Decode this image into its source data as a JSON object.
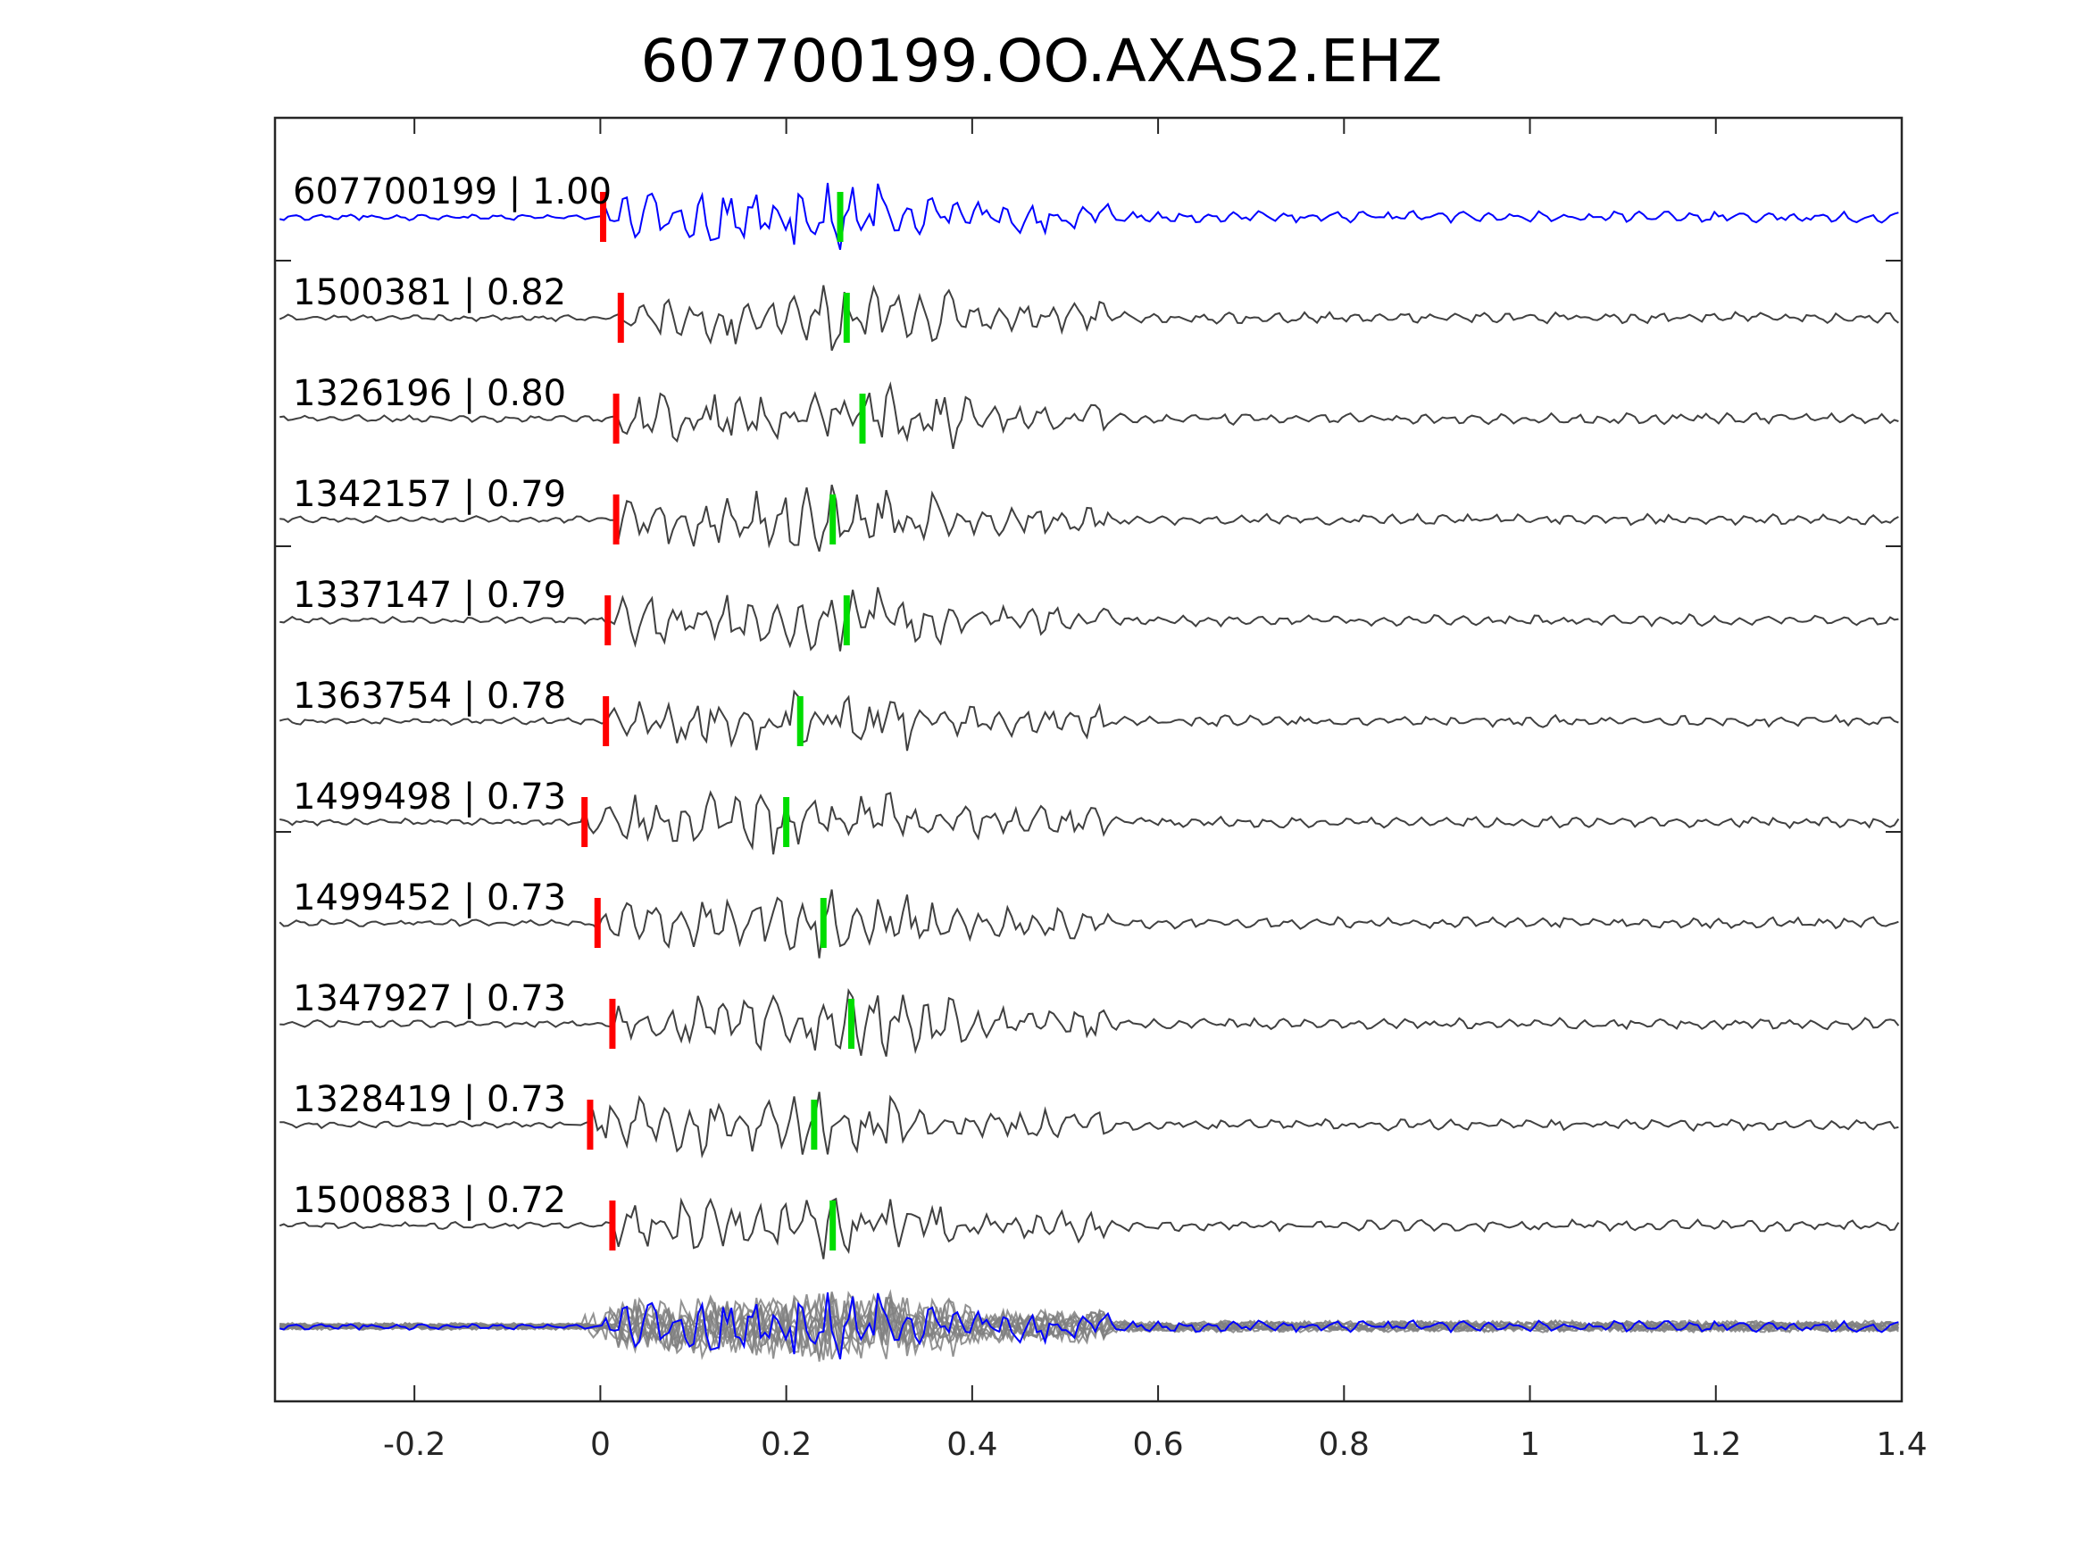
{
  "chart_data": {
    "type": "line",
    "title": "607700199.OO.AXAS2.EHZ",
    "xlabel": "",
    "ylabel": "",
    "xlim": [
      -0.35,
      1.4
    ],
    "xticks": [
      "-0.2",
      "0",
      "0.2",
      "0.4",
      "0.6",
      "0.8",
      "1",
      "1.2",
      "1.4"
    ],
    "xtick_values": [
      -0.2,
      0,
      0.2,
      0.4,
      0.6,
      0.8,
      1.0,
      1.2,
      1.4
    ],
    "grid": false,
    "colors": {
      "template": "#0000ff",
      "match": "#404040",
      "stack": "#808080",
      "p_pick": "#ff0000",
      "s_pick": "#00dd00"
    },
    "series": [
      {
        "label": "607700199 | 1.00",
        "p_pick": 0.003,
        "s_pick": 0.258
      },
      {
        "label": "1500381 | 0.82",
        "p_pick": 0.022,
        "s_pick": 0.265
      },
      {
        "label": "1326196 | 0.80",
        "p_pick": 0.017,
        "s_pick": 0.282
      },
      {
        "label": "1342157 | 0.79",
        "p_pick": 0.017,
        "s_pick": 0.25
      },
      {
        "label": "1337147 | 0.79",
        "p_pick": 0.008,
        "s_pick": 0.265
      },
      {
        "label": "1363754 | 0.78",
        "p_pick": 0.006,
        "s_pick": 0.215
      },
      {
        "label": "1499498 | 0.73",
        "p_pick": -0.017,
        "s_pick": 0.2
      },
      {
        "label": "1499452 | 0.73",
        "p_pick": -0.003,
        "s_pick": 0.24
      },
      {
        "label": "1347927 | 0.73",
        "p_pick": 0.013,
        "s_pick": 0.27
      },
      {
        "label": "1328419 | 0.73",
        "p_pick": -0.011,
        "s_pick": 0.23
      },
      {
        "label": "1500883 | 0.72",
        "p_pick": 0.013,
        "s_pick": 0.25
      }
    ]
  }
}
